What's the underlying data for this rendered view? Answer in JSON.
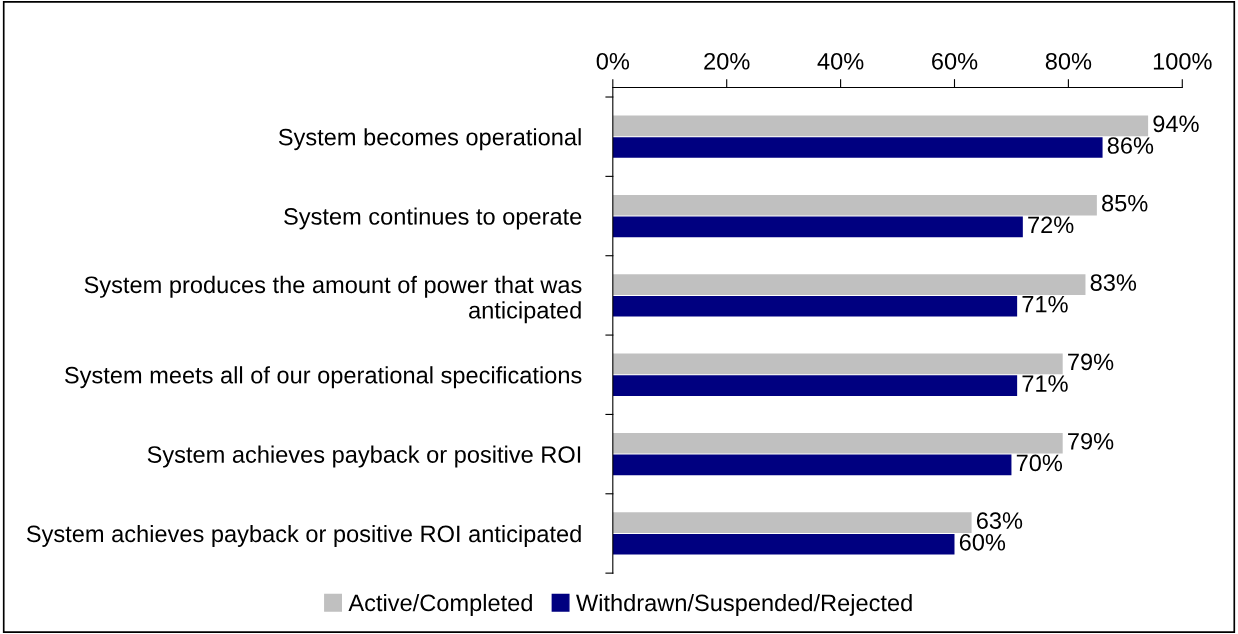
{
  "chart_data": {
    "type": "bar",
    "orientation": "horizontal",
    "categories": [
      "System becomes operational",
      "System continues to operate",
      "System produces the amount of power that was anticipated",
      "System meets all of our operational specifications",
      "System achieves payback or positive ROI",
      "System achieves payback or positive ROI anticipated"
    ],
    "series": [
      {
        "name": "Active/Completed",
        "color": "#c0c0c0",
        "values": [
          94,
          85,
          83,
          79,
          79,
          63
        ],
        "value_labels": [
          "94%",
          "85%",
          "83%",
          "79%",
          "79%",
          "63%"
        ]
      },
      {
        "name": "Withdrawn/Suspended/Rejected",
        "color": "#000080",
        "values": [
          86,
          72,
          71,
          71,
          70,
          60
        ],
        "value_labels": [
          "86%",
          "72%",
          "71%",
          "71%",
          "70%",
          "60%"
        ]
      }
    ],
    "xlim": [
      0,
      100
    ],
    "xticks": [
      {
        "value": 0,
        "label": "0%"
      },
      {
        "value": 20,
        "label": "20%"
      },
      {
        "value": 40,
        "label": "40%"
      },
      {
        "value": 60,
        "label": "60%"
      },
      {
        "value": 80,
        "label": "80%"
      },
      {
        "value": 100,
        "label": "100%"
      }
    ],
    "grid": false,
    "legend": "bottom"
  }
}
